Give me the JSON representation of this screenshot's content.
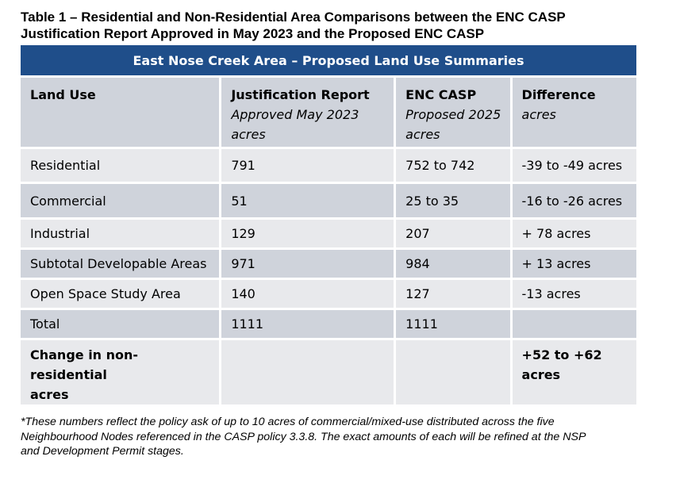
{
  "caption_line1": "Table 1 – Residential and Non-Residential Area Comparisons between the ENC CASP",
  "caption_line2": "Justification Report Approved in May 2023 and the Proposed ENC CASP",
  "table": {
    "title": "East Nose Creek Area – Proposed Land Use Summaries",
    "headers": {
      "land_use": "Land Use",
      "jr_title": "Justification Report",
      "jr_sub": "Approved May 2023",
      "jr_unit": "acres",
      "casp_title": "ENC CASP",
      "casp_sub": "Proposed 2025",
      "casp_unit": "acres",
      "diff_title": "Difference",
      "diff_unit": "acres"
    },
    "rows": [
      {
        "land_use": "Residential",
        "jr": "791",
        "casp": "752 to 742",
        "diff": "-39 to -49 acres"
      },
      {
        "land_use": "Commercial",
        "jr": "51",
        "casp": "25 to 35",
        "diff": "-16 to -26 acres"
      },
      {
        "land_use": "Industrial",
        "jr": "129",
        "casp": "207",
        "diff": "+ 78 acres"
      },
      {
        "land_use": "Subtotal Developable Areas",
        "jr": "971",
        "casp": "984",
        "diff": "+ 13 acres"
      },
      {
        "land_use": "Open Space Study Area",
        "jr": "140",
        "casp": "127",
        "diff": "-13 acres"
      },
      {
        "land_use": "Total",
        "jr": "1111",
        "casp": "1111",
        "diff": ""
      }
    ],
    "change_row": {
      "label_line1": "Change in non-residential",
      "label_line2": "acres",
      "diff": "+52 to +62 acres"
    }
  },
  "footnote_line1": "*These numbers reflect the policy ask of up to 10 acres of commercial/mixed-use distributed across the five",
  "footnote_line2": "Neighbourhood Nodes referenced in the CASP policy 3.3.8. The exact amounts of each will be refined at the NSP",
  "footnote_line3": "and Development Permit stages."
}
